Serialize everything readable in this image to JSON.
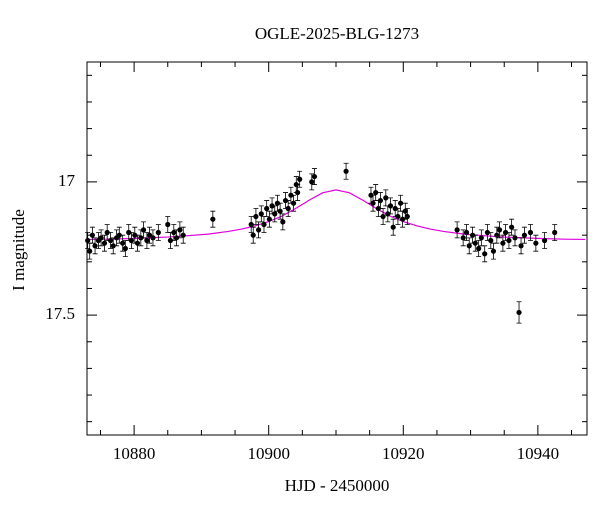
{
  "chart_data": {
    "type": "lightcurve",
    "title": "OGLE-2025-BLG-1273",
    "x_label": "HJD - 2450000",
    "y_label": "I magnitude",
    "xlim": [
      10873,
      10947.3
    ],
    "ylim": [
      16.55,
      17.95
    ],
    "y_inverted": true,
    "xticks": [
      10880,
      10900,
      10920,
      10940
    ],
    "yticks": [
      17,
      17.5
    ],
    "x_minor_ticks": [
      10875,
      10885,
      10890,
      10895,
      10905,
      10910,
      10915,
      10925,
      10930,
      10935,
      10945
    ],
    "y_minor_ticks": [
      16.6,
      16.7,
      16.8,
      16.9,
      17.1,
      17.2,
      17.3,
      17.4,
      17.6,
      17.7,
      17.8,
      17.9
    ],
    "points": {
      "color": "#000000",
      "x": [
        10873.1,
        10873.4,
        10873.8,
        10874.2,
        10874.7,
        10875.1,
        10875.6,
        10876.0,
        10876.5,
        10876.9,
        10877.4,
        10877.8,
        10878.3,
        10878.7,
        10879.2,
        10879.6,
        10880.1,
        10880.5,
        10881.0,
        10881.4,
        10881.9,
        10882.3,
        10882.8,
        10883.6,
        10885.0,
        10885.4,
        10885.9,
        10886.3,
        10886.8,
        10887.3,
        10891.7,
        10897.4,
        10897.7,
        10898.1,
        10898.5,
        10898.9,
        10899.3,
        10899.7,
        10900.1,
        10900.5,
        10900.9,
        10901.3,
        10901.7,
        10902.1,
        10902.5,
        10902.9,
        10903.3,
        10903.7,
        10904.1,
        10904.3,
        10904.6,
        10906.4,
        10906.8,
        10911.5,
        10915.2,
        10915.5,
        10915.9,
        10916.3,
        10916.6,
        10917.0,
        10917.4,
        10917.7,
        10918.1,
        10918.5,
        10918.8,
        10919.2,
        10919.6,
        10919.9,
        10920.3,
        10920.6,
        10928.0,
        10928.9,
        10929.4,
        10929.8,
        10930.3,
        10930.7,
        10931.2,
        10931.6,
        10932.1,
        10932.5,
        10933.0,
        10933.4,
        10933.9,
        10934.3,
        10934.8,
        10935.2,
        10935.7,
        10936.1,
        10936.6,
        10937.2,
        10937.5,
        10938.0,
        10938.9,
        10939.7,
        10941.0,
        10942.5
      ],
      "values": [
        17.22,
        17.26,
        17.2,
        17.24,
        17.22,
        17.21,
        17.23,
        17.19,
        17.22,
        17.24,
        17.21,
        17.2,
        17.23,
        17.25,
        17.19,
        17.22,
        17.2,
        17.23,
        17.21,
        17.18,
        17.22,
        17.2,
        17.21,
        17.19,
        17.16,
        17.22,
        17.19,
        17.21,
        17.18,
        17.2,
        17.14,
        17.16,
        17.2,
        17.13,
        17.18,
        17.12,
        17.16,
        17.1,
        17.14,
        17.09,
        17.12,
        17.08,
        17.11,
        17.15,
        17.07,
        17.1,
        17.05,
        17.08,
        17.01,
        17.04,
        16.99,
        17.0,
        16.98,
        16.96,
        17.05,
        17.08,
        17.04,
        17.1,
        17.07,
        17.13,
        17.06,
        17.12,
        17.09,
        17.17,
        17.1,
        17.13,
        17.08,
        17.14,
        17.11,
        17.13,
        17.18,
        17.21,
        17.19,
        17.24,
        17.2,
        17.23,
        17.25,
        17.21,
        17.27,
        17.19,
        17.22,
        17.26,
        17.2,
        17.18,
        17.23,
        17.19,
        17.22,
        17.17,
        17.21,
        17.49,
        17.24,
        17.2,
        17.19,
        17.23,
        17.22,
        17.19
      ],
      "errors": [
        0.03,
        0.03,
        0.03,
        0.03,
        0.03,
        0.03,
        0.03,
        0.03,
        0.03,
        0.03,
        0.03,
        0.03,
        0.03,
        0.03,
        0.03,
        0.03,
        0.03,
        0.03,
        0.03,
        0.03,
        0.03,
        0.03,
        0.03,
        0.03,
        0.03,
        0.03,
        0.03,
        0.03,
        0.03,
        0.03,
        0.03,
        0.03,
        0.03,
        0.03,
        0.03,
        0.03,
        0.03,
        0.03,
        0.03,
        0.03,
        0.03,
        0.03,
        0.03,
        0.03,
        0.03,
        0.03,
        0.03,
        0.03,
        0.03,
        0.03,
        0.03,
        0.03,
        0.03,
        0.03,
        0.03,
        0.03,
        0.03,
        0.03,
        0.03,
        0.03,
        0.03,
        0.03,
        0.03,
        0.03,
        0.03,
        0.03,
        0.03,
        0.03,
        0.03,
        0.03,
        0.03,
        0.03,
        0.03,
        0.03,
        0.03,
        0.03,
        0.03,
        0.03,
        0.03,
        0.03,
        0.03,
        0.03,
        0.03,
        0.03,
        0.03,
        0.03,
        0.03,
        0.03,
        0.03,
        0.04,
        0.03,
        0.03,
        0.03,
        0.03,
        0.03,
        0.03
      ]
    },
    "model": {
      "color": "#e000e0",
      "x": [
        10873,
        10876,
        10879,
        10882,
        10885,
        10888,
        10891,
        10894,
        10896,
        10898,
        10900,
        10902,
        10904,
        10906,
        10908,
        10910,
        10912,
        10914,
        10916,
        10918,
        10920,
        10922,
        10924,
        10926,
        10929,
        10932,
        10935,
        10938,
        10941,
        10944,
        10947
      ],
      "values": [
        17.216,
        17.215,
        17.213,
        17.21,
        17.207,
        17.202,
        17.196,
        17.186,
        17.177,
        17.165,
        17.149,
        17.128,
        17.1,
        17.069,
        17.041,
        17.03,
        17.041,
        17.069,
        17.1,
        17.128,
        17.149,
        17.165,
        17.177,
        17.186,
        17.196,
        17.202,
        17.207,
        17.21,
        17.213,
        17.215,
        17.216
      ]
    }
  }
}
